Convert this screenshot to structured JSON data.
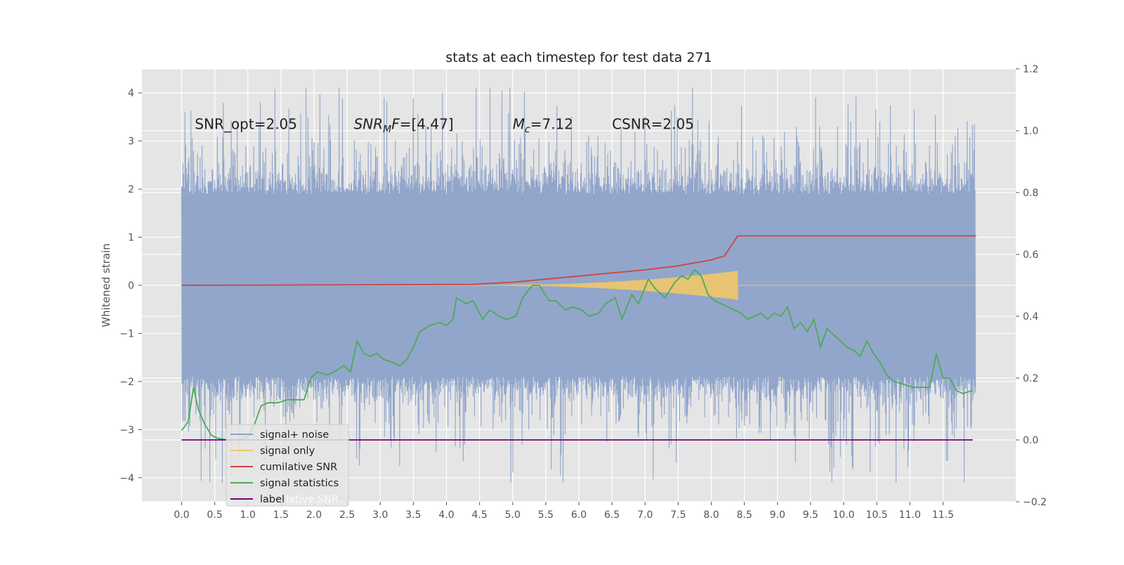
{
  "chart_data": {
    "type": "line",
    "title": "stats at each timestep for test data 271",
    "ylabel": "Whitened strain",
    "xlabel": "",
    "xlim": [
      -0.6,
      12.6
    ],
    "ylim": [
      -4.5,
      4.5
    ],
    "ylim_right": [
      -0.2,
      1.2
    ],
    "grid": true,
    "legend_position": "lower-left",
    "x_ticks": [
      "0.0",
      "0.5",
      "1.0",
      "1.5",
      "2.0",
      "2.5",
      "3.0",
      "3.5",
      "4.0",
      "4.5",
      "5.0",
      "5.5",
      "6.0",
      "6.5",
      "7.0",
      "7.5",
      "8.0",
      "8.5",
      "9.0",
      "9.5",
      "10.0",
      "10.5",
      "11.0",
      "11.5"
    ],
    "y_ticks_left": [
      "−4",
      "−3",
      "−2",
      "−1",
      "0",
      "1",
      "2",
      "3",
      "4"
    ],
    "y_ticks_right": [
      "−0.2",
      "0.0",
      "0.2",
      "0.4",
      "0.6",
      "0.8",
      "1.0",
      "1.2"
    ],
    "annotations": [
      {
        "text": "SNR_opt=2.05",
        "x": 0.2,
        "y": 3.25
      },
      {
        "text": "SNRMF=[4.47]",
        "x": 2.6,
        "y": 3.25
      },
      {
        "text": "Mc=7.12",
        "x": 5.0,
        "y": 3.25
      },
      {
        "text": "CSNR=2.05",
        "x": 6.5,
        "y": 3.25
      }
    ],
    "legend": [
      {
        "label": "signal+ noise",
        "color": "#8da2c9"
      },
      {
        "label": "signal only",
        "color": "#f0c868"
      },
      {
        "label": "cumilative SNR",
        "color": "#cc4444"
      },
      {
        "label": "signal statistics",
        "color": "#4daa57"
      },
      {
        "label": "label",
        "color": "#7a007a"
      }
    ],
    "legend_overlap_text": "lative SNR",
    "series": [
      {
        "name": "signal+ noise",
        "axis": "left",
        "color": "#8da2c9",
        "kind": "noise-band",
        "x_range": [
          0.0,
          11.99
        ],
        "typical_extent": [
          -2.0,
          2.0
        ],
        "max": 4.1,
        "min": -4.1
      },
      {
        "name": "signal only",
        "axis": "left",
        "color": "#f0c868",
        "kind": "chirp",
        "x_range": [
          4.4,
          8.4
        ],
        "peak_amplitude": 0.3,
        "after": 0.0
      },
      {
        "name": "cumilative SNR",
        "axis": "right",
        "color": "#cc4444",
        "x": [
          0.0,
          4.4,
          5.0,
          5.5,
          6.0,
          6.5,
          7.0,
          7.5,
          8.0,
          8.2,
          8.4,
          12.0
        ],
        "y": [
          0.5,
          0.503,
          0.51,
          0.52,
          0.53,
          0.54,
          0.55,
          0.563,
          0.582,
          0.595,
          0.66,
          0.66
        ]
      },
      {
        "name": "signal statistics",
        "axis": "right",
        "color": "#4daa57",
        "x": [
          0.0,
          0.1,
          0.18,
          0.25,
          0.35,
          0.45,
          0.55,
          0.7,
          0.85,
          1.0,
          1.1,
          1.2,
          1.3,
          1.45,
          1.6,
          1.75,
          1.85,
          1.95,
          2.05,
          2.2,
          2.3,
          2.45,
          2.55,
          2.65,
          2.75,
          2.85,
          2.95,
          3.05,
          3.2,
          3.3,
          3.4,
          3.5,
          3.6,
          3.75,
          3.9,
          4.0,
          4.1,
          4.15,
          4.3,
          4.4,
          4.55,
          4.65,
          4.8,
          4.9,
          5.05,
          5.15,
          5.3,
          5.4,
          5.55,
          5.65,
          5.8,
          5.9,
          6.05,
          6.15,
          6.3,
          6.4,
          6.55,
          6.65,
          6.8,
          6.9,
          7.05,
          7.15,
          7.3,
          7.45,
          7.55,
          7.65,
          7.75,
          7.85,
          7.95,
          8.05,
          8.15,
          8.25,
          8.35,
          8.45,
          8.55,
          8.65,
          8.75,
          8.85,
          8.95,
          9.05,
          9.15,
          9.25,
          9.35,
          9.45,
          9.55,
          9.65,
          9.75,
          9.85,
          9.95,
          10.05,
          10.15,
          10.25,
          10.35,
          10.45,
          10.55,
          10.65,
          10.75,
          10.9,
          11.05,
          11.2,
          11.3,
          11.4,
          11.5,
          11.6,
          11.7,
          11.8,
          11.95
        ],
        "y": [
          0.03,
          0.06,
          0.17,
          0.1,
          0.05,
          0.015,
          0.005,
          0.0,
          0.0,
          0.01,
          0.05,
          0.11,
          0.12,
          0.12,
          0.13,
          0.13,
          0.13,
          0.2,
          0.22,
          0.21,
          0.22,
          0.24,
          0.22,
          0.32,
          0.28,
          0.27,
          0.28,
          0.26,
          0.25,
          0.24,
          0.26,
          0.3,
          0.35,
          0.37,
          0.38,
          0.37,
          0.39,
          0.46,
          0.44,
          0.45,
          0.39,
          0.42,
          0.4,
          0.39,
          0.4,
          0.46,
          0.5,
          0.5,
          0.45,
          0.45,
          0.42,
          0.43,
          0.42,
          0.4,
          0.41,
          0.44,
          0.46,
          0.39,
          0.47,
          0.44,
          0.52,
          0.49,
          0.46,
          0.51,
          0.53,
          0.52,
          0.55,
          0.53,
          0.47,
          0.45,
          0.44,
          0.43,
          0.42,
          0.41,
          0.39,
          0.4,
          0.41,
          0.39,
          0.41,
          0.4,
          0.43,
          0.36,
          0.38,
          0.35,
          0.39,
          0.3,
          0.36,
          0.34,
          0.32,
          0.3,
          0.29,
          0.27,
          0.32,
          0.28,
          0.25,
          0.21,
          0.19,
          0.18,
          0.17,
          0.17,
          0.17,
          0.28,
          0.2,
          0.2,
          0.16,
          0.15,
          0.16
        ]
      },
      {
        "name": "label",
        "axis": "right",
        "color": "#7a007a",
        "x": [
          0.0,
          11.95
        ],
        "y": [
          0.0,
          0.0
        ]
      }
    ]
  }
}
